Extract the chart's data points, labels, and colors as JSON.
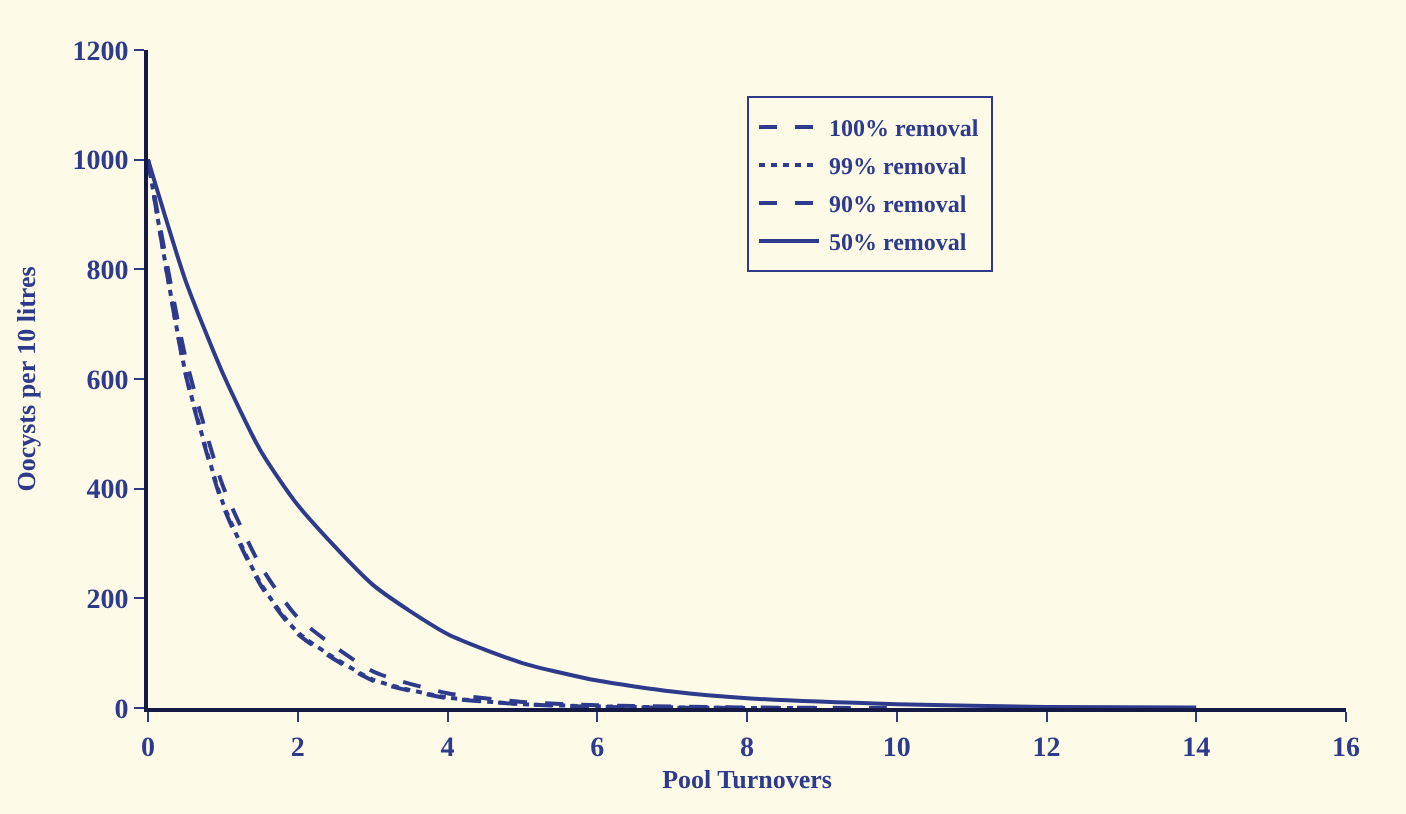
{
  "chart_data": {
    "type": "line",
    "xlabel": "Pool Turnovers",
    "ylabel": "Oocysts per 10 litres",
    "xlim": [
      0,
      16
    ],
    "xticks": [
      0,
      2,
      4,
      6,
      8,
      10,
      12,
      14,
      16
    ],
    "ylim": [
      0,
      1200
    ],
    "yticks": [
      0,
      200,
      400,
      600,
      800,
      1000,
      1200
    ],
    "grid": false,
    "legend": "top",
    "marker": "none",
    "series": [
      {
        "name": "100% removal",
        "color": "#2e3a8c",
        "line_style": "dashed",
        "x": [
          0,
          0.5,
          1,
          1.5,
          2,
          3,
          4,
          5,
          6,
          8
        ],
        "values": [
          1000,
          610,
          370,
          225,
          135,
          50,
          18,
          7,
          2,
          0
        ]
      },
      {
        "name": "99% removal",
        "color": "#2e3a8c",
        "line_style": "dotted",
        "x": [
          0,
          0.5,
          1,
          1.5,
          2,
          3,
          4,
          5,
          6,
          8,
          9
        ],
        "values": [
          1000,
          612,
          374,
          228,
          138,
          52,
          19,
          7,
          3,
          0,
          0
        ]
      },
      {
        "name": "90% removal",
        "color": "#2e3a8c",
        "line_style": "dashed",
        "x": [
          0,
          0.5,
          1,
          1.5,
          2,
          3,
          4,
          5,
          6,
          8,
          10
        ],
        "values": [
          1000,
          640,
          405,
          260,
          165,
          67,
          27,
          11,
          5,
          1,
          0
        ]
      },
      {
        "name": "50% removal",
        "color": "#2e3a8c",
        "line_style": "solid",
        "x": [
          0,
          0.5,
          1,
          1.5,
          2,
          3,
          4,
          5,
          6,
          7,
          8,
          10,
          12,
          14
        ],
        "values": [
          1000,
          780,
          610,
          470,
          370,
          225,
          135,
          82,
          50,
          30,
          18,
          7,
          2,
          1
        ]
      }
    ]
  }
}
